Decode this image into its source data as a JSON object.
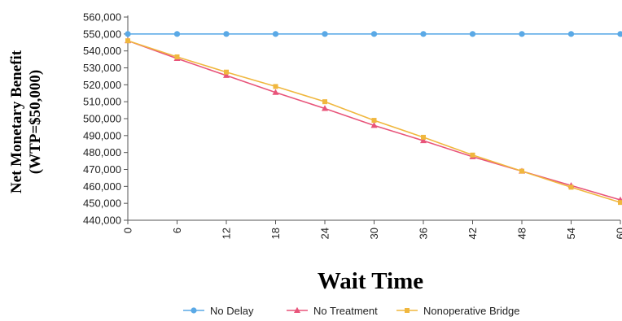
{
  "chart_data": {
    "type": "line",
    "xlabel": "Wait Time",
    "ylabel_lines": [
      "Net Monetary Benefit",
      "(WTP=$50,000)"
    ],
    "x": [
      0,
      6,
      12,
      18,
      24,
      30,
      36,
      42,
      48,
      54,
      60
    ],
    "xlim": [
      0,
      60
    ],
    "ylim": [
      440000,
      560000
    ],
    "yticks": [
      440000,
      450000,
      460000,
      470000,
      480000,
      490000,
      500000,
      510000,
      520000,
      530000,
      540000,
      550000,
      560000
    ],
    "ytick_labels": [
      "440,000",
      "450,000",
      "460,000",
      "470,000",
      "480,000",
      "490,000",
      "500,000",
      "510,000",
      "520,000",
      "530,000",
      "540,000",
      "550,000",
      "560,000"
    ],
    "grid": false,
    "legend_position": "bottom",
    "series": [
      {
        "name": "No Delay",
        "color": "#5aa9e6",
        "marker": "circle",
        "values": [
          550000,
          550000,
          550000,
          550000,
          550000,
          550000,
          550000,
          550000,
          550000,
          550000,
          550000
        ]
      },
      {
        "name": "No Treatment",
        "color": "#e8547a",
        "marker": "triangle",
        "values": [
          546000,
          535500,
          525500,
          515500,
          506000,
          496000,
          487000,
          477500,
          469000,
          460500,
          452000
        ]
      },
      {
        "name": "Nonoperative Bridge",
        "color": "#f0b73e",
        "marker": "square",
        "values": [
          546000,
          536500,
          527500,
          519000,
          510000,
          499000,
          489000,
          478500,
          469000,
          459500,
          450500
        ]
      }
    ]
  }
}
